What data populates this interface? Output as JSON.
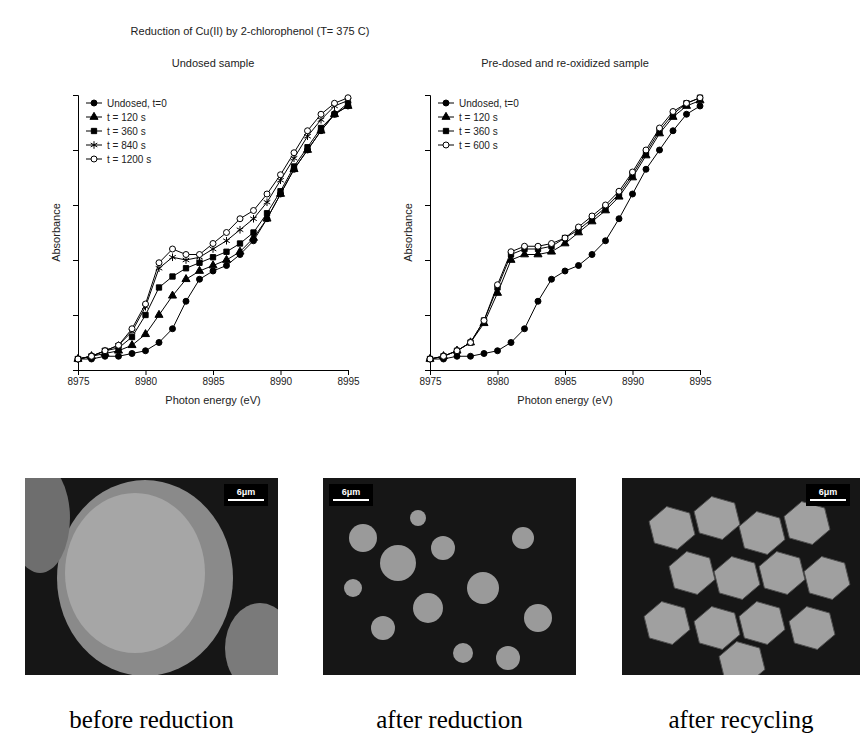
{
  "title": "Reduction of Cu(II) by 2-chlorophenol (T= 375 C)",
  "chart_data": [
    {
      "type": "line",
      "title": "Undosed sample",
      "x_label": "Photon energy (eV)",
      "y_label": "Absorbance",
      "x": [
        8975,
        8976,
        8977,
        8978,
        8979,
        8980,
        8981,
        8982,
        8983,
        8984,
        8985,
        8986,
        8987,
        8988,
        8989,
        8990,
        8991,
        8992,
        8993,
        8994,
        8995
      ],
      "series": [
        {
          "name": "Undosed, t=0",
          "color": "#000000",
          "marker": "circle",
          "values": [
            0.04,
            0.04,
            0.05,
            0.05,
            0.06,
            0.07,
            0.1,
            0.15,
            0.25,
            0.33,
            0.36,
            0.38,
            0.42,
            0.47,
            0.55,
            0.64,
            0.73,
            0.8,
            0.87,
            0.93,
            0.96
          ]
        },
        {
          "name": "t = 120 s",
          "color": "#000000",
          "marker": "triangle",
          "values": [
            0.04,
            0.05,
            0.06,
            0.07,
            0.09,
            0.13,
            0.2,
            0.27,
            0.33,
            0.36,
            0.38,
            0.4,
            0.43,
            0.48,
            0.55,
            0.64,
            0.73,
            0.8,
            0.87,
            0.93,
            0.96
          ]
        },
        {
          "name": "t = 360 s",
          "color": "#000000",
          "marker": "square",
          "values": [
            0.04,
            0.05,
            0.07,
            0.08,
            0.12,
            0.2,
            0.3,
            0.34,
            0.37,
            0.39,
            0.41,
            0.43,
            0.46,
            0.5,
            0.57,
            0.65,
            0.74,
            0.81,
            0.88,
            0.93,
            0.97
          ]
        },
        {
          "name": "t = 840 s",
          "color": "#000000",
          "marker": "asterisk",
          "values": [
            0.04,
            0.05,
            0.07,
            0.09,
            0.14,
            0.23,
            0.37,
            0.41,
            0.4,
            0.41,
            0.44,
            0.47,
            0.51,
            0.55,
            0.61,
            0.69,
            0.77,
            0.85,
            0.91,
            0.96,
            0.98
          ]
        },
        {
          "name": "t = 1200 s",
          "color": "#000000",
          "marker": "circle-open",
          "values": [
            0.04,
            0.05,
            0.07,
            0.09,
            0.15,
            0.24,
            0.39,
            0.44,
            0.42,
            0.42,
            0.46,
            0.5,
            0.55,
            0.58,
            0.64,
            0.71,
            0.79,
            0.87,
            0.93,
            0.97,
            0.99
          ]
        }
      ],
      "xlim": [
        8975,
        8995
      ],
      "xticks": [
        8975,
        8980,
        8985,
        8990,
        8995
      ],
      "ylim": [
        0,
        1
      ],
      "yticks": [
        0,
        0.2,
        0.4,
        0.6,
        0.8,
        1
      ],
      "tick_labels": "x",
      "legend": "upper left",
      "grid": false
    },
    {
      "type": "line",
      "title": "Pre-dosed and re-oxidized sample",
      "x_label": "Photon energy (eV)",
      "y_label": "Absorbance",
      "x": [
        8975,
        8976,
        8977,
        8978,
        8979,
        8980,
        8981,
        8982,
        8983,
        8984,
        8985,
        8986,
        8987,
        8988,
        8989,
        8990,
        8991,
        8992,
        8993,
        8994,
        8995
      ],
      "series": [
        {
          "name": "Undosed, t=0",
          "color": "#000000",
          "marker": "circle",
          "values": [
            0.04,
            0.04,
            0.05,
            0.05,
            0.06,
            0.07,
            0.1,
            0.15,
            0.25,
            0.33,
            0.36,
            0.38,
            0.42,
            0.47,
            0.55,
            0.64,
            0.73,
            0.8,
            0.87,
            0.93,
            0.96
          ]
        },
        {
          "name": "t = 120 s",
          "color": "#000000",
          "marker": "triangle",
          "values": [
            0.04,
            0.05,
            0.07,
            0.1,
            0.17,
            0.28,
            0.4,
            0.42,
            0.42,
            0.43,
            0.46,
            0.5,
            0.54,
            0.58,
            0.63,
            0.7,
            0.78,
            0.86,
            0.92,
            0.96,
            0.98
          ]
        },
        {
          "name": "t = 360 s",
          "color": "#000000",
          "marker": "square",
          "values": [
            0.04,
            0.05,
            0.07,
            0.1,
            0.18,
            0.3,
            0.42,
            0.44,
            0.44,
            0.45,
            0.48,
            0.51,
            0.55,
            0.59,
            0.64,
            0.71,
            0.79,
            0.87,
            0.93,
            0.97,
            0.99
          ]
        },
        {
          "name": "t = 600 s",
          "color": "#000000",
          "marker": "circle-open",
          "values": [
            0.04,
            0.05,
            0.07,
            0.1,
            0.18,
            0.31,
            0.43,
            0.45,
            0.45,
            0.46,
            0.48,
            0.52,
            0.56,
            0.6,
            0.65,
            0.72,
            0.8,
            0.88,
            0.94,
            0.97,
            0.99
          ]
        }
      ],
      "xlim": [
        8975,
        8995
      ],
      "xticks": [
        8975,
        8980,
        8985,
        8990,
        8995
      ],
      "ylim": [
        0,
        1
      ],
      "yticks": [
        0,
        0.2,
        0.4,
        0.6,
        0.8,
        1
      ],
      "tick_labels": "x",
      "legend": "upper left",
      "grid": false
    }
  ],
  "images": [
    {
      "caption": "before reduction",
      "scale_bar": "6μm"
    },
    {
      "caption": "after reduction",
      "scale_bar": "6μm"
    },
    {
      "caption": "after recycling",
      "scale_bar": "6μm"
    }
  ]
}
